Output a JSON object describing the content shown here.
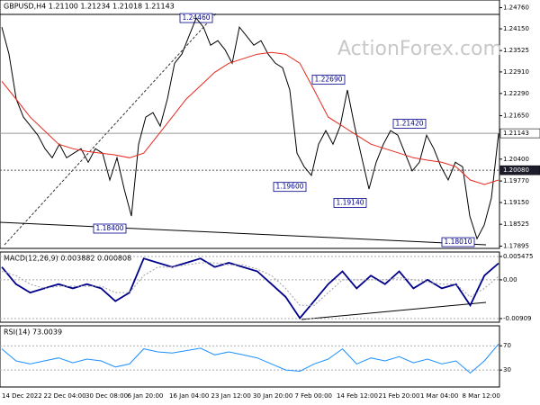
{
  "title": "GBPUSD,H4 1.21100 1.21234 1.21018 1.21143",
  "watermark": "ActionForex.com",
  "time_labels": [
    "14 Dec 2022",
    "22 Dec 04:00",
    "30 Dec 08:00",
    "6 Jan 20:00",
    "16 Jan 04:00",
    "23 Jan 12:00",
    "30 Jan 20:00",
    "7 Feb 00:00",
    "14 Feb 12:00",
    "21 Feb 20:00",
    "1 Mar 04:00",
    "8 Mar 12:00"
  ],
  "chart_data": [
    {
      "type": "line",
      "ylim": [
        1.1783,
        1.2498
      ],
      "yticks": [
        {
          "value": 1.2476,
          "label": "1.24760"
        },
        {
          "value": 1.2415,
          "label": "1.24150"
        },
        1.23525,
        {
          "value": 1.2291,
          "label": "1.22910"
        },
        {
          "value": 1.2229,
          "label": "1.22290"
        },
        {
          "value": 1.2165,
          "label": "1.21650"
        },
        {
          "value": 1.204,
          "label": "1.20400"
        },
        {
          "value": 1.1977,
          "label": "1.19770"
        },
        {
          "value": 1.1915,
          "label": "1.19150"
        },
        1.18525,
        1.17895
      ],
      "series": [
        {
          "color": "#000000",
          "values": [
            1.242,
            1.2342,
            1.2213,
            1.2161,
            1.2135,
            1.2109,
            1.207,
            1.2044,
            1.2083,
            1.2044,
            1.2057,
            1.207,
            1.2031,
            1.207,
            1.2057,
            1.198,
            1.2044,
            1.1954,
            1.1876,
            1.2083,
            1.2161,
            1.2174,
            1.2135,
            1.2213,
            1.2316,
            1.2342,
            1.2394,
            1.2446,
            1.242,
            1.2368,
            1.2381,
            1.2355,
            1.2316,
            1.242,
            1.2394,
            1.2368,
            1.2381,
            1.2342,
            1.2316,
            1.2303,
            1.2239,
            1.2057,
            1.2018,
            1.1993,
            1.2083,
            1.2122,
            1.2083,
            1.2135,
            1.2239,
            1.2135,
            1.2044,
            1.1954,
            1.2031,
            1.2083,
            1.2122,
            1.2109,
            1.2057,
            1.2006,
            1.2031,
            1.2109,
            1.207,
            1.2018,
            1.198,
            1.2031,
            1.2018,
            1.1876,
            1.1811,
            1.185,
            1.1928,
            1.2114
          ]
        },
        {
          "color": "#e8281e",
          "values": [
            1.2264,
            1.2213,
            1.2161,
            1.2122,
            1.2083,
            1.207,
            1.2062,
            1.2057,
            1.2052,
            1.2044,
            1.2057,
            1.2109,
            1.2161,
            1.2213,
            1.2251,
            1.229,
            1.2316,
            1.2329,
            1.2342,
            1.2347,
            1.2342,
            1.2316,
            1.2239,
            1.2161,
            1.2135,
            1.2109,
            1.2083,
            1.207,
            1.2057,
            1.2044,
            1.2037,
            1.2031,
            1.2018,
            1.198,
            1.1967,
            1.198
          ]
        }
      ],
      "hlines": [
        {
          "value": 1.2008,
          "label": "1.20080"
        },
        {
          "value": 1.21143,
          "label": "1.21143"
        }
      ],
      "annotations": [
        {
          "value": 1.2446,
          "label": "1.24460"
        },
        {
          "value": 1.2269,
          "label": "1.22690"
        },
        {
          "value": 1.2142,
          "label": "1.21420"
        },
        {
          "value": 1.196,
          "label": "1.19600"
        },
        {
          "value": 1.1914,
          "label": "1.19140"
        },
        {
          "value": 1.184,
          "label": "1.18400"
        },
        {
          "value": 1.1801,
          "label": "1.18010"
        }
      ]
    },
    {
      "type": "line",
      "title": "MACD(12,26,9) 0.003882 0.000808",
      "ylim": [
        -0.00994,
        0.00653
      ],
      "yticks": [
        0.005475,
        {
          "value": 0,
          "label": "0.00"
        },
        -0.00909
      ],
      "series": [
        {
          "color": "#00008b",
          "values": [
            0.003,
            -0.001,
            -0.003,
            -0.002,
            -0.001,
            -0.002,
            -0.001,
            -0.002,
            -0.005,
            -0.003,
            0.005,
            0.004,
            0.003,
            0.004,
            0.005,
            0.003,
            0.004,
            0.003,
            0.002,
            -0.001,
            -0.004,
            -0.009,
            -0.005,
            -0.001,
            0.002,
            -0.002,
            0.001,
            -0.001,
            0.002,
            -0.002,
            0,
            -0.002,
            -0.001,
            -0.006,
            0.001,
            0.0039
          ]
        },
        {
          "color": "#a0a0a0",
          "values": [
            0.002,
            0.001,
            -0.001,
            -0.002,
            -0.0015,
            -0.0015,
            -0.0015,
            -0.0015,
            -0.003,
            -0.003,
            0.001,
            0.003,
            0.003,
            0.0035,
            0.004,
            0.004,
            0.0035,
            0.0035,
            0.0025,
            0.001,
            -0.002,
            -0.006,
            -0.006,
            -0.003,
            0,
            0,
            0,
            0,
            0.0005,
            0,
            -0.0005,
            -0.001,
            -0.001,
            -0.004,
            -0.002,
            0.0008
          ]
        }
      ]
    },
    {
      "type": "line",
      "title": "RSI(14) 73.0039",
      "ylim": [
        2,
        103
      ],
      "yticks": [
        70,
        30
      ],
      "series": [
        {
          "color": "#1e90ff",
          "values": [
            65,
            45,
            40,
            45,
            50,
            42,
            48,
            45,
            35,
            40,
            65,
            60,
            58,
            62,
            66,
            55,
            60,
            55,
            50,
            40,
            30,
            28,
            40,
            48,
            65,
            40,
            50,
            45,
            52,
            42,
            48,
            40,
            45,
            25,
            45,
            73
          ]
        }
      ]
    }
  ]
}
